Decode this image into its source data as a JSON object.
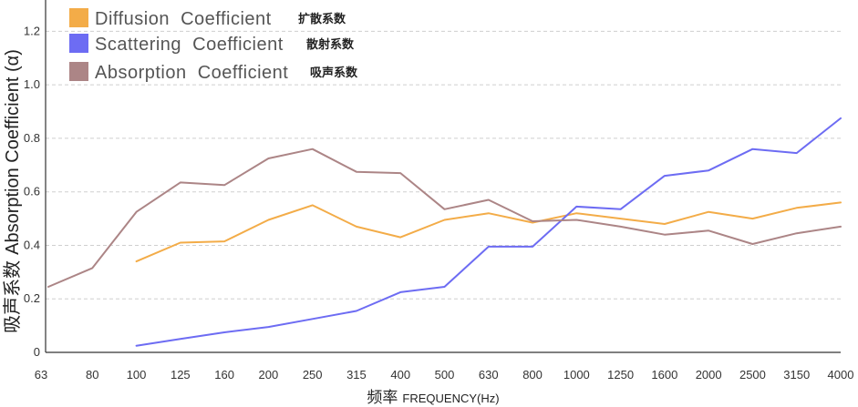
{
  "chart_data": {
    "type": "line",
    "xlabel": "频率 FREQUENCY(Hz)",
    "xlabel_cn": "频率",
    "xlabel_en": "FREQUENCY(Hz)",
    "ylabel": "吸声系数 Absorption Coefficient (α)",
    "ylabel_cn": "吸声系数",
    "ylabel_en": "Absorption Coefficient (α)",
    "ylim": [
      0,
      1.3
    ],
    "yticks": [
      0,
      0.2,
      0.4,
      0.6,
      0.8,
      1.0,
      1.2
    ],
    "ytick_labels": [
      "0",
      "0.2",
      "0.4",
      "0.6",
      "0.8",
      "1.0",
      "1.2"
    ],
    "categories": [
      "63",
      "80",
      "100",
      "125",
      "160",
      "200",
      "250",
      "315",
      "400",
      "500",
      "630",
      "800",
      "1000",
      "1250",
      "1600",
      "2000",
      "2500",
      "3150",
      "4000"
    ],
    "grid": true,
    "legend_position": "top-left",
    "series": [
      {
        "name": "Diffusion  Coefficient",
        "name_cn": "扩散系数",
        "color": "#F3AC48",
        "values": [
          null,
          null,
          0.34,
          0.41,
          0.415,
          0.495,
          0.55,
          0.47,
          0.43,
          0.495,
          0.52,
          0.485,
          0.52,
          0.5,
          0.48,
          0.525,
          0.5,
          0.54,
          0.56
        ]
      },
      {
        "name": "Scattering  Coefficient",
        "name_cn": "散射系数",
        "color": "#6D6CF3",
        "values": [
          null,
          null,
          0.025,
          0.05,
          0.075,
          0.095,
          0.125,
          0.155,
          0.225,
          0.245,
          0.395,
          0.395,
          0.545,
          0.535,
          0.66,
          0.68,
          0.76,
          0.745,
          0.875
        ]
      },
      {
        "name": "Absorption  Coefficient",
        "name_cn": "吸声系数",
        "color": "#AC8586",
        "values": [
          0.245,
          0.315,
          0.525,
          0.635,
          0.625,
          0.725,
          0.76,
          0.675,
          0.67,
          0.535,
          0.57,
          0.49,
          0.495,
          0.47,
          0.44,
          0.455,
          0.405,
          0.445,
          0.47
        ]
      }
    ]
  }
}
